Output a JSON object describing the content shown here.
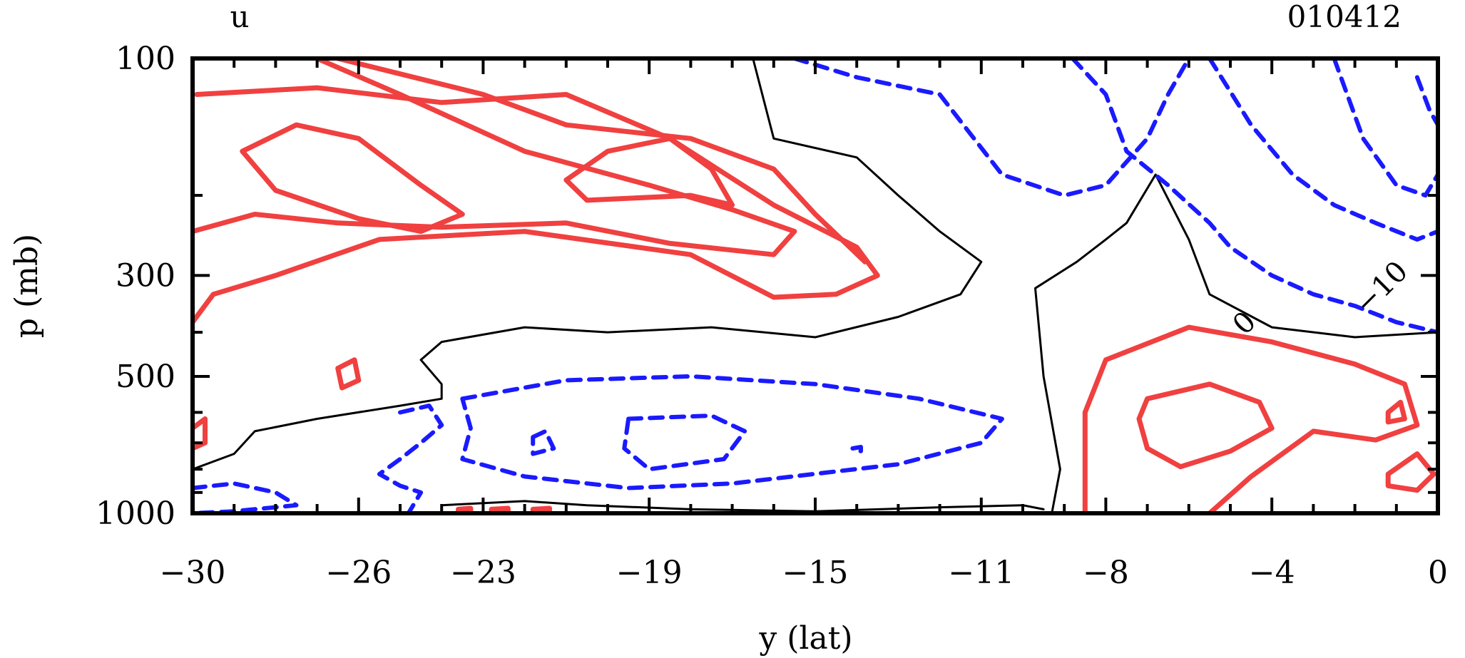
{
  "header": {
    "variable": "u",
    "date_code": "010412"
  },
  "chart_data": {
    "type": "contour",
    "title": "",
    "xlabel": "y (lat)",
    "ylabel": "p (mb)",
    "xlim": [
      -30,
      0
    ],
    "ylim": [
      1000,
      100
    ],
    "x_ticks": [
      {
        "value": -30,
        "label": "−30"
      },
      {
        "value": -26,
        "label": "−26"
      },
      {
        "value": -23,
        "label": "−23"
      },
      {
        "value": -19,
        "label": "−19"
      },
      {
        "value": -15,
        "label": "−15"
      },
      {
        "value": -11,
        "label": "−11"
      },
      {
        "value": -8,
        "label": "−8"
      },
      {
        "value": -4,
        "label": "−4"
      },
      {
        "value": 0,
        "label": "0"
      }
    ],
    "y_ticks": [
      {
        "value": 100,
        "label": "100"
      },
      {
        "value": 300,
        "label": "300"
      },
      {
        "value": 500,
        "label": "500"
      },
      {
        "value": 1000,
        "label": "1000"
      }
    ],
    "contour_labels": [
      {
        "text": "0",
        "x": -4.5,
        "y": 395
      },
      {
        "text": "−10",
        "x": -1.2,
        "y": 330
      }
    ],
    "colors": {
      "positive": "#f04040",
      "zero": "#000000",
      "negative": "#1a1aff"
    },
    "contours": [
      {
        "sign": "positive",
        "points": [
          [
            -29.9,
            120
          ],
          [
            -27,
            116
          ],
          [
            -24,
            125
          ],
          [
            -21,
            120
          ],
          [
            -18.5,
            150
          ],
          [
            -16,
            210
          ],
          [
            -14,
            260
          ],
          [
            -13.5,
            300
          ],
          [
            -14.5,
            330
          ],
          [
            -16,
            335
          ],
          [
            -18,
            270
          ],
          [
            -22,
            240
          ],
          [
            -25.5,
            250
          ],
          [
            -28,
            300
          ],
          [
            -29.5,
            330
          ],
          [
            -30,
            380
          ]
        ]
      },
      {
        "sign": "positive",
        "points": [
          [
            -27,
            100
          ],
          [
            -25,
            120
          ],
          [
            -22,
            160
          ],
          [
            -19,
            190
          ],
          [
            -17,
            215
          ],
          [
            -15.5,
            240
          ],
          [
            -16,
            270
          ],
          [
            -18.5,
            255
          ],
          [
            -21,
            230
          ],
          [
            -24,
            235
          ],
          [
            -26.5,
            230
          ],
          [
            -28.5,
            220
          ],
          [
            -30,
            240
          ]
        ]
      },
      {
        "sign": "positive",
        "points": [
          [
            -28.8,
            160
          ],
          [
            -27.5,
            140
          ],
          [
            -26,
            150
          ],
          [
            -24.5,
            190
          ],
          [
            -23.5,
            220
          ],
          [
            -24.5,
            240
          ],
          [
            -26,
            225
          ],
          [
            -28,
            195
          ],
          [
            -28.8,
            160
          ]
        ]
      },
      {
        "sign": "positive",
        "points": [
          [
            -20,
            160
          ],
          [
            -18.5,
            150
          ],
          [
            -17.5,
            175
          ],
          [
            -17,
            210
          ],
          [
            -18,
            200
          ],
          [
            -20.5,
            205
          ],
          [
            -21,
            185
          ],
          [
            -20,
            160
          ]
        ]
      },
      {
        "sign": "positive",
        "points": [
          [
            -26.5,
            100
          ],
          [
            -23,
            120
          ],
          [
            -21,
            140
          ],
          [
            -18,
            150
          ],
          [
            -16,
            175
          ],
          [
            -15,
            220
          ],
          [
            -13.8,
            280
          ]
        ]
      },
      {
        "sign": "positive",
        "points": [
          [
            -8.5,
            1000
          ],
          [
            -8.5,
            600
          ],
          [
            -8,
            460
          ],
          [
            -6,
            390
          ],
          [
            -4,
            420
          ],
          [
            -2,
            470
          ],
          [
            -0.8,
            520
          ],
          [
            -0.5,
            640
          ],
          [
            -1.5,
            690
          ],
          [
            -3,
            660
          ],
          [
            -4.5,
            830
          ],
          [
            -5.5,
            1000
          ]
        ]
      },
      {
        "sign": "positive",
        "points": [
          [
            -7,
            560
          ],
          [
            -5.5,
            520
          ],
          [
            -4.3,
            570
          ],
          [
            -4,
            650
          ],
          [
            -5,
            730
          ],
          [
            -6.2,
            790
          ],
          [
            -7,
            720
          ],
          [
            -7.2,
            620
          ],
          [
            -7,
            560
          ]
        ]
      },
      {
        "sign": "positive",
        "points": [
          [
            -1.2,
            820
          ],
          [
            -0.5,
            740
          ],
          [
            -0.1,
            820
          ],
          [
            -0.5,
            890
          ],
          [
            -1.2,
            870
          ],
          [
            -1.2,
            820
          ]
        ]
      },
      {
        "sign": "positive",
        "points": [
          [
            -1.2,
            600
          ],
          [
            -0.9,
            570
          ],
          [
            -0.8,
            620
          ],
          [
            -1.2,
            630
          ],
          [
            -1.2,
            600
          ]
        ]
      },
      {
        "sign": "positive",
        "points": [
          [
            -26.5,
            480
          ],
          [
            -26.1,
            460
          ],
          [
            -26,
            510
          ],
          [
            -26.4,
            530
          ],
          [
            -26.5,
            480
          ]
        ]
      },
      {
        "sign": "positive",
        "points": [
          [
            -30,
            650
          ],
          [
            -29.7,
            620
          ],
          [
            -29.7,
            700
          ],
          [
            -30,
            720
          ]
        ]
      },
      {
        "sign": "positive",
        "points": [
          [
            -23.6,
            980
          ],
          [
            -23.3,
            975
          ],
          [
            -23.3,
            990
          ],
          [
            -23.6,
            985
          ]
        ]
      },
      {
        "sign": "positive",
        "points": [
          [
            -22.8,
            980
          ],
          [
            -22.4,
            975
          ],
          [
            -22.4,
            990
          ],
          [
            -22.8,
            985
          ]
        ]
      },
      {
        "sign": "positive",
        "points": [
          [
            -21.8,
            980
          ],
          [
            -21.4,
            975
          ],
          [
            -21.4,
            990
          ],
          [
            -21.8,
            985
          ]
        ]
      },
      {
        "sign": "zero",
        "points": [
          [
            -16.5,
            100
          ],
          [
            -16,
            150
          ],
          [
            -14,
            165
          ],
          [
            -13,
            200
          ],
          [
            -12,
            240
          ],
          [
            -11,
            280
          ],
          [
            -11.5,
            330
          ],
          [
            -13,
            370
          ],
          [
            -15,
            410
          ],
          [
            -17.5,
            390
          ],
          [
            -20,
            400
          ],
          [
            -22,
            390
          ],
          [
            -24,
            420
          ],
          [
            -24.5,
            460
          ],
          [
            -24,
            520
          ],
          [
            -24,
            560
          ],
          [
            -25,
            580
          ],
          [
            -27,
            620
          ],
          [
            -28.5,
            660
          ],
          [
            -29,
            740
          ],
          [
            -30,
            800
          ]
        ]
      },
      {
        "sign": "zero",
        "points": [
          [
            -9.3,
            1000
          ],
          [
            -9.1,
            800
          ],
          [
            -9.5,
            500
          ],
          [
            -9.7,
            320
          ],
          [
            -8.7,
            280
          ],
          [
            -8,
            250
          ],
          [
            -7.5,
            230
          ],
          [
            -6.8,
            180
          ],
          [
            -6,
            250
          ],
          [
            -5.5,
            330
          ],
          [
            -4,
            390
          ],
          [
            -2,
            410
          ],
          [
            0,
            400
          ]
        ]
      },
      {
        "sign": "zero",
        "points": [
          [
            -24,
            960
          ],
          [
            -22,
            940
          ],
          [
            -20.5,
            960
          ],
          [
            -18,
            980
          ],
          [
            -15,
            990
          ],
          [
            -12,
            970
          ],
          [
            -10,
            960
          ],
          [
            -9.5,
            980
          ]
        ]
      },
      {
        "sign": "negative",
        "points": [
          [
            -23.5,
            560
          ],
          [
            -21,
            510
          ],
          [
            -18,
            500
          ],
          [
            -15,
            520
          ],
          [
            -12.5,
            560
          ],
          [
            -10.5,
            620
          ],
          [
            -11,
            700
          ],
          [
            -13,
            780
          ],
          [
            -17,
            860
          ],
          [
            -19.5,
            880
          ],
          [
            -22,
            830
          ],
          [
            -23.5,
            760
          ],
          [
            -23.3,
            650
          ],
          [
            -23.5,
            560
          ]
        ]
      },
      {
        "sign": "negative",
        "points": [
          [
            -25,
            600
          ],
          [
            -24.3,
            580
          ],
          [
            -24,
            640
          ],
          [
            -24.5,
            700
          ],
          [
            -25,
            760
          ],
          [
            -25.5,
            820
          ],
          [
            -25,
            870
          ],
          [
            -24.5,
            900
          ],
          [
            -24.8,
            1000
          ]
        ]
      },
      {
        "sign": "negative",
        "points": [
          [
            -19.5,
            620
          ],
          [
            -17.5,
            610
          ],
          [
            -16.7,
            660
          ],
          [
            -17.2,
            760
          ],
          [
            -19,
            800
          ],
          [
            -19.6,
            720
          ],
          [
            -19.5,
            620
          ]
        ]
      },
      {
        "sign": "negative",
        "points": [
          [
            -21.8,
            680
          ],
          [
            -21.5,
            660
          ],
          [
            -21.3,
            720
          ],
          [
            -21.8,
            740
          ],
          [
            -21.8,
            680
          ]
        ]
      },
      {
        "sign": "negative",
        "points": [
          [
            -14.1,
            720
          ],
          [
            -13.9,
            715
          ],
          [
            -13.9,
            730
          ],
          [
            -14.1,
            728
          ]
        ]
      },
      {
        "sign": "negative",
        "points": [
          [
            -30,
            880
          ],
          [
            -29,
            860
          ],
          [
            -28,
            900
          ],
          [
            -27.5,
            960
          ],
          [
            -29,
            990
          ],
          [
            -30,
            1000
          ]
        ]
      },
      {
        "sign": "negative",
        "points": [
          [
            -15.5,
            100
          ],
          [
            -14,
            110
          ],
          [
            -12,
            120
          ],
          [
            -10.5,
            180
          ],
          [
            -9,
            200
          ],
          [
            -8,
            190
          ],
          [
            -7,
            150
          ],
          [
            -6.5,
            120
          ],
          [
            -6,
            100
          ]
        ]
      },
      {
        "sign": "negative",
        "points": [
          [
            -8.8,
            100
          ],
          [
            -8,
            120
          ],
          [
            -7.5,
            160
          ],
          [
            -6.5,
            190
          ],
          [
            -5.5,
            230
          ],
          [
            -5,
            260
          ],
          [
            -4,
            300
          ],
          [
            -3,
            330
          ],
          [
            -2,
            350
          ],
          [
            -1,
            380
          ],
          [
            0,
            400
          ]
        ]
      },
      {
        "sign": "negative",
        "points": [
          [
            -5.5,
            100
          ],
          [
            -4.5,
            140
          ],
          [
            -3.5,
            180
          ],
          [
            -2.5,
            210
          ],
          [
            -1.5,
            230
          ],
          [
            -0.5,
            250
          ],
          [
            0,
            240
          ]
        ]
      },
      {
        "sign": "negative",
        "points": [
          [
            -2.5,
            100
          ],
          [
            -1.8,
            150
          ],
          [
            -1,
            190
          ],
          [
            -0.3,
            200
          ],
          [
            0,
            180
          ]
        ]
      },
      {
        "sign": "negative",
        "points": [
          [
            -0.5,
            110
          ],
          [
            -0.2,
            130
          ],
          [
            0,
            140
          ]
        ]
      }
    ]
  }
}
